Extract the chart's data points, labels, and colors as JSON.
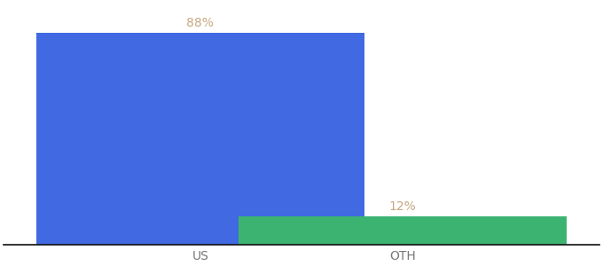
{
  "categories": [
    "US",
    "OTH"
  ],
  "values": [
    88,
    12
  ],
  "bar_colors": [
    "#4169E1",
    "#3CB371"
  ],
  "label_format": [
    "88%",
    "12%"
  ],
  "background_color": "#ffffff",
  "ylim": [
    0,
    100
  ],
  "bar_width": 0.55,
  "label_color": "#c8a882",
  "label_fontsize": 10,
  "tick_fontsize": 10,
  "tick_color": "#777777",
  "x_positions": [
    0.33,
    0.67
  ]
}
